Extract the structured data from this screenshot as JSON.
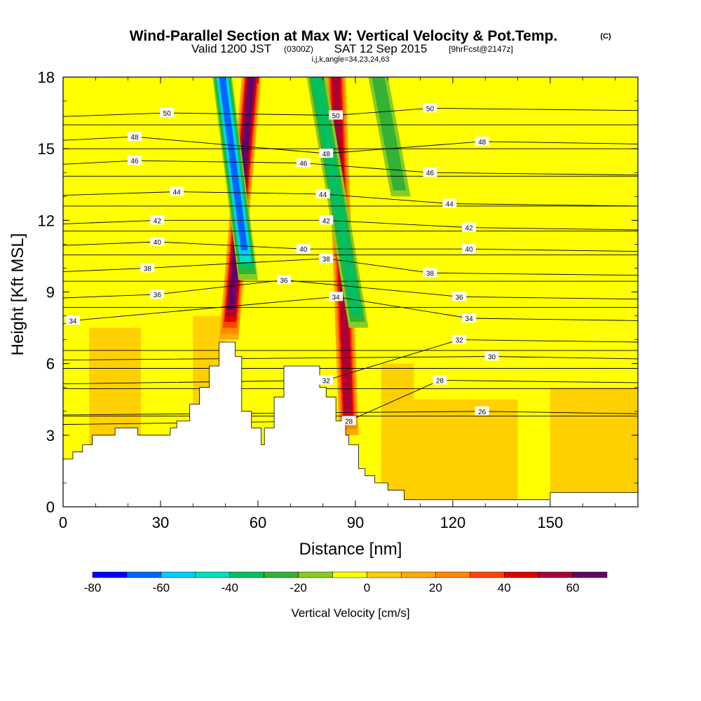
{
  "header": {
    "title": "Wind-Parallel Section at Max W: Vertical Velocity & Pot.Temp.",
    "title_mark": "(C)",
    "valid_prefix": "Valid 1200 JST",
    "valid_utc": "(0300Z)",
    "valid_date": "SAT 12 Sep 2015",
    "forecast": "[9hrFcst@2147z]",
    "indices": "i,j,k,angle=34,23,24,63"
  },
  "chart_data": {
    "type": "heatmap",
    "title": "Wind-Parallel Section at Max W: Vertical Velocity & Pot.Temp.",
    "xlabel": "Distance [nm]",
    "ylabel": "Height [Kft MSL]",
    "xlim": [
      0,
      177
    ],
    "ylim": [
      0,
      18
    ],
    "x_ticks": [
      "0",
      "30",
      "60",
      "90",
      "120",
      "150"
    ],
    "x_tick_values": [
      0,
      30,
      60,
      90,
      120,
      150
    ],
    "y_ticks": [
      "0",
      "3",
      "6",
      "9",
      "12",
      "15",
      "18"
    ],
    "y_tick_values": [
      0,
      3,
      6,
      9,
      12,
      15,
      18
    ],
    "colorbar": {
      "label": "Vertical Velocity [cm/s]",
      "tick_labels": [
        "-80",
        "-60",
        "-40",
        "-20",
        "0",
        "20",
        "40",
        "60"
      ],
      "tick_values": [
        -80,
        -60,
        -40,
        -20,
        0,
        20,
        40,
        60
      ],
      "levels": [
        -80,
        -70,
        -60,
        -50,
        -40,
        -30,
        -20,
        -10,
        0,
        10,
        20,
        30,
        40,
        50,
        60,
        70
      ],
      "colors": [
        "#0000ff",
        "#0066ff",
        "#00ccff",
        "#00e0c0",
        "#00c060",
        "#33b233",
        "#88cc22",
        "#ffff00",
        "#ffcc00",
        "#ffaa00",
        "#ff8800",
        "#ff4400",
        "#e00000",
        "#aa0033",
        "#660066"
      ]
    },
    "background_fill": "#ffff00",
    "updraft_bands": [
      {
        "x_bottom": 51,
        "y_bottom": 7.0,
        "x_top": 58,
        "y_top": 18,
        "peak_cm_s": 60
      },
      {
        "x_bottom": 88,
        "y_bottom": 3.0,
        "x_top": 84,
        "y_top": 18,
        "peak_cm_s": 55
      }
    ],
    "downdraft_bands": [
      {
        "x_bottom": 57,
        "y_bottom": 9.5,
        "x_top": 49,
        "y_top": 18,
        "peak_cm_s": -60
      },
      {
        "x_bottom": 91,
        "y_bottom": 7.5,
        "x_top": 78,
        "y_top": 18,
        "peak_cm_s": -35
      },
      {
        "x_bottom": 104,
        "y_bottom": 13.0,
        "x_top": 97,
        "y_top": 18,
        "peak_cm_s": -25
      }
    ],
    "theta_contours": {
      "units": "C",
      "labels": [
        {
          "text": "50",
          "x": 32,
          "y": 16.5
        },
        {
          "text": "48",
          "x": 22,
          "y": 15.5
        },
        {
          "text": "46",
          "x": 22,
          "y": 14.5
        },
        {
          "text": "44",
          "x": 35,
          "y": 13.2
        },
        {
          "text": "42",
          "x": 29,
          "y": 12.0
        },
        {
          "text": "40",
          "x": 29,
          "y": 11.1
        },
        {
          "text": "38",
          "x": 26,
          "y": 10.0
        },
        {
          "text": "36",
          "x": 29,
          "y": 8.9
        },
        {
          "text": "34",
          "x": 3,
          "y": 7.8
        },
        {
          "text": "50",
          "x": 84,
          "y": 16.4
        },
        {
          "text": "48",
          "x": 81,
          "y": 14.8
        },
        {
          "text": "46",
          "x": 74,
          "y": 14.4
        },
        {
          "text": "44",
          "x": 80,
          "y": 13.1
        },
        {
          "text": "42",
          "x": 81,
          "y": 12.0
        },
        {
          "text": "40",
          "x": 74,
          "y": 10.8
        },
        {
          "text": "38",
          "x": 81,
          "y": 10.4
        },
        {
          "text": "36",
          "x": 68,
          "y": 9.5
        },
        {
          "text": "34",
          "x": 84,
          "y": 8.8
        },
        {
          "text": "32",
          "x": 81,
          "y": 5.3
        },
        {
          "text": "28",
          "x": 88,
          "y": 3.6
        },
        {
          "text": "50",
          "x": 113,
          "y": 16.7
        },
        {
          "text": "48",
          "x": 129,
          "y": 15.3
        },
        {
          "text": "46",
          "x": 113,
          "y": 14.0
        },
        {
          "text": "44",
          "x": 119,
          "y": 12.7
        },
        {
          "text": "42",
          "x": 125,
          "y": 11.7
        },
        {
          "text": "40",
          "x": 125,
          "y": 10.8
        },
        {
          "text": "38",
          "x": 113,
          "y": 9.8
        },
        {
          "text": "36",
          "x": 122,
          "y": 8.8
        },
        {
          "text": "34",
          "x": 125,
          "y": 7.9
        },
        {
          "text": "32",
          "x": 122,
          "y": 7.0
        },
        {
          "text": "30",
          "x": 132,
          "y": 6.3
        },
        {
          "text": "28",
          "x": 116,
          "y": 5.3
        },
        {
          "text": "26",
          "x": 129,
          "y": 4.0
        }
      ]
    },
    "terrain_profile": [
      [
        0,
        2.0
      ],
      [
        3,
        2.0
      ],
      [
        3,
        2.3
      ],
      [
        6,
        2.3
      ],
      [
        6,
        2.6
      ],
      [
        9,
        2.6
      ],
      [
        9,
        3.0
      ],
      [
        16,
        3.0
      ],
      [
        16,
        3.3
      ],
      [
        23,
        3.3
      ],
      [
        23,
        3.0
      ],
      [
        33,
        3.0
      ],
      [
        33,
        3.3
      ],
      [
        35,
        3.3
      ],
      [
        35,
        3.6
      ],
      [
        39,
        3.6
      ],
      [
        39,
        4.3
      ],
      [
        42,
        4.3
      ],
      [
        42,
        5.0
      ],
      [
        45,
        5.0
      ],
      [
        45,
        5.9
      ],
      [
        48,
        5.9
      ],
      [
        48,
        6.9
      ],
      [
        53,
        6.9
      ],
      [
        53,
        6.3
      ],
      [
        55,
        6.3
      ],
      [
        55,
        4.0
      ],
      [
        58,
        4.0
      ],
      [
        58,
        3.3
      ],
      [
        61,
        3.3
      ],
      [
        61,
        2.6
      ],
      [
        62,
        2.6
      ],
      [
        62,
        3.3
      ],
      [
        65,
        3.3
      ],
      [
        65,
        4.6
      ],
      [
        68,
        4.6
      ],
      [
        68,
        5.0
      ],
      [
        68,
        5.0
      ],
      [
        68,
        5.9
      ],
      [
        79,
        5.9
      ],
      [
        79,
        5.0
      ],
      [
        81,
        5.0
      ],
      [
        81,
        4.6
      ],
      [
        84,
        4.6
      ],
      [
        84,
        3.6
      ],
      [
        87,
        3.6
      ],
      [
        87,
        3.0
      ],
      [
        88,
        3.0
      ],
      [
        88,
        2.6
      ],
      [
        91,
        2.6
      ],
      [
        91,
        1.6
      ],
      [
        93,
        1.6
      ],
      [
        93,
        1.3
      ],
      [
        96,
        1.3
      ],
      [
        96,
        1.0
      ],
      [
        100,
        1.0
      ],
      [
        100,
        0.7
      ],
      [
        105,
        0.7
      ],
      [
        105,
        0.3
      ],
      [
        150,
        0.3
      ],
      [
        150,
        0.6
      ],
      [
        177,
        0.6
      ]
    ]
  }
}
